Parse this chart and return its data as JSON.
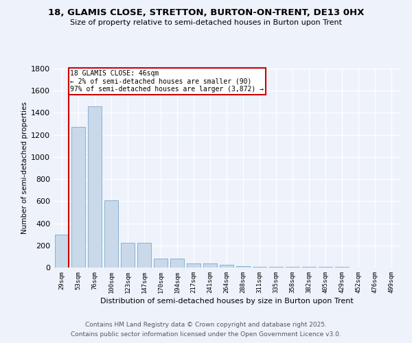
{
  "title": "18, GLAMIS CLOSE, STRETTON, BURTON-ON-TRENT, DE13 0HX",
  "subtitle": "Size of property relative to semi-detached houses in Burton upon Trent",
  "xlabel": "Distribution of semi-detached houses by size in Burton upon Trent",
  "ylabel": "Number of semi-detached properties",
  "categories": [
    "29sqm",
    "53sqm",
    "76sqm",
    "100sqm",
    "123sqm",
    "147sqm",
    "170sqm",
    "194sqm",
    "217sqm",
    "241sqm",
    "264sqm",
    "288sqm",
    "311sqm",
    "335sqm",
    "358sqm",
    "382sqm",
    "405sqm",
    "429sqm",
    "452sqm",
    "476sqm",
    "499sqm"
  ],
  "values": [
    300,
    1270,
    1460,
    610,
    225,
    225,
    80,
    80,
    40,
    35,
    25,
    15,
    5,
    5,
    5,
    5,
    5,
    5,
    3,
    3,
    3
  ],
  "bar_color": "#c9d9ea",
  "bar_edge_color": "#7aaac8",
  "annotation_text": "18 GLAMIS CLOSE: 46sqm\n← 2% of semi-detached houses are smaller (90)\n97% of semi-detached houses are larger (3,872) →",
  "annotation_box_color": "#ffffff",
  "annotation_border_color": "#cc0000",
  "red_line_color": "#cc0000",
  "footer_line1": "Contains HM Land Registry data © Crown copyright and database right 2025.",
  "footer_line2": "Contains public sector information licensed under the Open Government Licence v3.0.",
  "background_color": "#eef2fb",
  "ylim": [
    0,
    1800
  ],
  "yticks": [
    0,
    200,
    400,
    600,
    800,
    1000,
    1200,
    1400,
    1600,
    1800
  ]
}
